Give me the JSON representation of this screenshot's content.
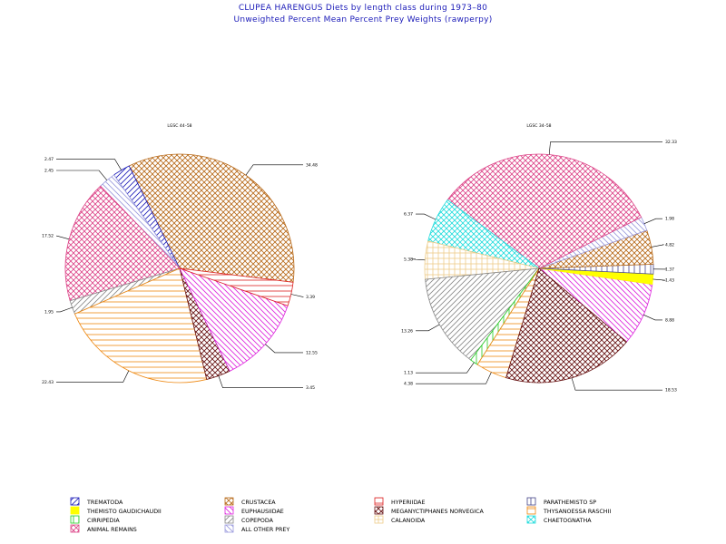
{
  "title": "CLUPEA HARENGUS Diets by length class during 1973–80",
  "subtitle": "Unweighted Percent Mean Percent Prey  Weights (rawperpy)",
  "colors": {
    "trematoda": "#1a1ab8",
    "themisto": "#ffff00",
    "cirripedia": "#22cc22",
    "animal_remains": "#dd4488",
    "crustacea": "#b86a1a",
    "euphausiidae": "#dd22dd",
    "copepoda": "#888888",
    "all_other": "#9999dd",
    "hyperiidae": "#dd2222",
    "meganyctiphanes": "#661111",
    "calanoida": "#eecc88",
    "parathemisto": "#444488",
    "thysanoessa": "#ee8811",
    "chaetognatha": "#22dddd"
  },
  "chart_data": [
    {
      "type": "pie",
      "title": "LGSC 44–58",
      "slices": [
        {
          "category": "crustacea",
          "value": 34.48,
          "label": "34.48"
        },
        {
          "category": "trematoda",
          "value": 2.47,
          "label": "2.47"
        },
        {
          "category": "all_other",
          "value": 2.45,
          "label": "2.45"
        },
        {
          "category": "animal_remains",
          "value": 17.52,
          "label": "17.52"
        },
        {
          "category": "copepoda",
          "value": 1.95,
          "label": "1.95"
        },
        {
          "category": "thysanoessa",
          "value": 22.43,
          "label": "22.43"
        },
        {
          "category": "meganyctiphanes",
          "value": 3.45,
          "label": "3.45"
        },
        {
          "category": "euphausiidae",
          "value": 12.55,
          "label": "12.55"
        },
        {
          "category": "hyperiidae",
          "value": 3.39,
          "label": "3.39"
        }
      ]
    },
    {
      "type": "pie",
      "title": "LGSC 34–58",
      "slices": [
        {
          "category": "euphausiidae",
          "value": 8.88,
          "label": "8.88"
        },
        {
          "category": "themisto",
          "value": 1.43,
          "label": "1.43"
        },
        {
          "category": "parathemisto",
          "value": 1.37,
          "label": "1.37"
        },
        {
          "category": "crustacea",
          "value": 4.82,
          "label": "4.82"
        },
        {
          "category": "all_other",
          "value": 1.98,
          "label": "1.98"
        },
        {
          "category": "animal_remains",
          "value": 32.33,
          "label": "32.33"
        },
        {
          "category": "chaetognatha",
          "value": 6.37,
          "label": "6.37"
        },
        {
          "category": "calanoida",
          "value": 5.38,
          "label": "5.38"
        },
        {
          "category": "copepoda",
          "value": 13.26,
          "label": "13.26"
        },
        {
          "category": "cirripedia",
          "value": 1.13,
          "label": "1.13"
        },
        {
          "category": "thysanoessa",
          "value": 4.38,
          "label": "4.38"
        },
        {
          "category": "meganyctiphanes",
          "value": 18.53,
          "label": "18.53"
        }
      ]
    }
  ],
  "legend": [
    {
      "category": "trematoda",
      "label": "TREMATODA"
    },
    {
      "category": "crustacea",
      "label": "CRUSTACEA"
    },
    {
      "category": "hyperiidae",
      "label": "HYPERIIDAE"
    },
    {
      "category": "parathemisto",
      "label": "PARATHEMISTO SP"
    },
    {
      "category": "themisto",
      "label": "THEMISTO GAUDICHAUDII"
    },
    {
      "category": "euphausiidae",
      "label": "EUPHAUSIIDAE"
    },
    {
      "category": "meganyctiphanes",
      "label": "MEGANYCTIPHANES NORVEGICA"
    },
    {
      "category": "thysanoessa",
      "label": "THYSANOESSA RASCHII"
    },
    {
      "category": "cirripedia",
      "label": "CIRRIPEDIA"
    },
    {
      "category": "copepoda",
      "label": "COPEPODA"
    },
    {
      "category": "calanoida",
      "label": "CALANOIDA"
    },
    {
      "category": "chaetognatha",
      "label": "CHAETOGNATHA"
    },
    {
      "category": "animal_remains",
      "label": "ANIMAL REMAINS"
    },
    {
      "category": "all_other",
      "label": "ALL OTHER PREY"
    }
  ]
}
